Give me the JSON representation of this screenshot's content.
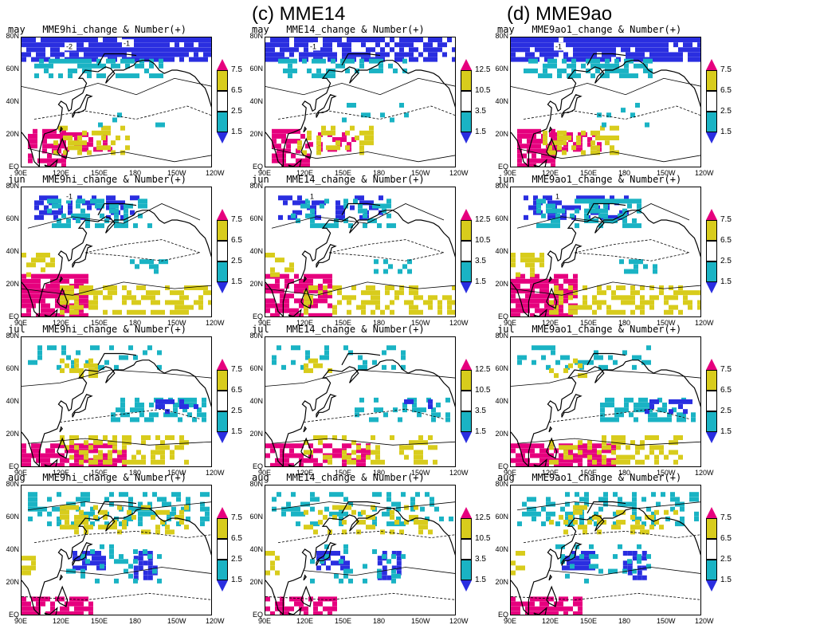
{
  "column_titles": [
    "(c) MME14",
    "(d) MME9ao"
  ],
  "y_ticks": [
    "80N",
    "60N",
    "40N",
    "20N",
    "EQ"
  ],
  "x_ticks": [
    "90E",
    "120E",
    "150E",
    "180",
    "150W",
    "120W"
  ],
  "colors": {
    "magenta": "#e6007e",
    "yellow": "#d8cc1c",
    "white": "#ffffff",
    "cyan": "#1ab3c4",
    "blue": "#2a2ee0"
  },
  "models": [
    {
      "id": "MME9hi",
      "colorbar": [
        "7.5",
        "6.5",
        "2.5",
        "1.5"
      ]
    },
    {
      "id": "MME14",
      "colorbar": [
        "12.5",
        "10.5",
        "3.5",
        "1.5"
      ]
    },
    {
      "id": "MME9ao1",
      "colorbar": [
        "7.5",
        "6.5",
        "2.5",
        "1.5"
      ]
    }
  ],
  "panels": [
    {
      "title": "may   MME9hi_change & Number(+)",
      "contour_labels": [
        "-2",
        "-1"
      ]
    },
    {
      "title": "may   MME14_change & Number(+)",
      "contour_labels": [
        "-1"
      ]
    },
    {
      "title": "may   MME9ao1_change & Number(+)",
      "contour_labels": [
        "-1"
      ]
    },
    {
      "title": "jun   MME9hi_change & Number(+)",
      "contour_labels": [
        "-1"
      ]
    },
    {
      "title": "jun   MME14_change & Number(+)",
      "contour_labels": [
        "1"
      ]
    },
    {
      "title": "jun   MME9ao1_change & Number(+)",
      "contour_labels": [
        "1"
      ]
    },
    {
      "title": "jul   MME9hi_change & Number(+)",
      "contour_labels": []
    },
    {
      "title": "jul   MME14_change & Number(+)",
      "contour_labels": []
    },
    {
      "title": "jul   MME9ao1_change & Number(+)",
      "contour_labels": []
    },
    {
      "title": "aug   MME9hi_change & Number(+)",
      "contour_labels": []
    },
    {
      "title": "aug   MME14_change & Number(+)",
      "contour_labels": []
    },
    {
      "title": "aug   MME9ao1_change & Number(+)",
      "contour_labels": []
    }
  ]
}
